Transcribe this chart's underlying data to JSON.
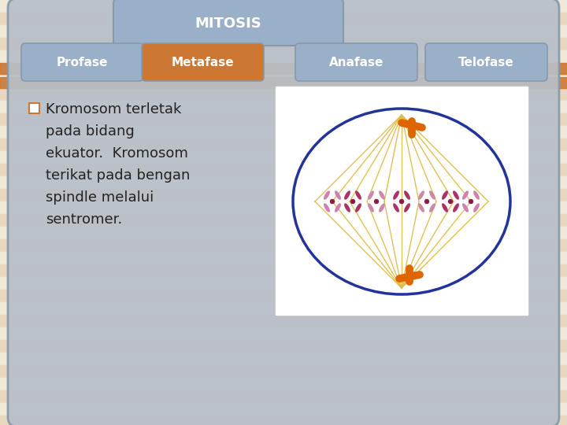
{
  "bg_stripe_light": "#f0e8d8",
  "bg_stripe_dark": "#e8d8c0",
  "orange_band_color": "#cc7733",
  "slide_bg": "#b8bfc8",
  "slide_border": "#8899aa",
  "title_bg": "#9ab0c8",
  "title_text": "MITOSIS",
  "title_color": "#ffffff",
  "tab_bg": "#9ab0c8",
  "tab_border": "#8899aa",
  "tab_active_bg": "#cc7733",
  "tab_active_color": "#ffffff",
  "tab_inactive_color": "#ffffff",
  "tabs": [
    "Profase",
    "Metafase",
    "Anafase",
    "Telofase"
  ],
  "active_tab": 1,
  "bullet_color": "#cc7733",
  "text_color": "#222222",
  "bullet_text_lines": [
    "Kromosom terletak",
    "pada bidang",
    "ekuator.  Kromosom",
    "terikat pada bengan",
    "spindle melalui",
    "sentromer."
  ],
  "cell_bg": "#ffffff",
  "cell_border": "#223399",
  "fiber_color": "#ddbb44",
  "chrom_colors": [
    "#d080b0",
    "#aa3366",
    "#cc88aa",
    "#aa3366",
    "#cc88aa",
    "#aa3366",
    "#d080b0"
  ],
  "centrosome_color": "#dd6600"
}
